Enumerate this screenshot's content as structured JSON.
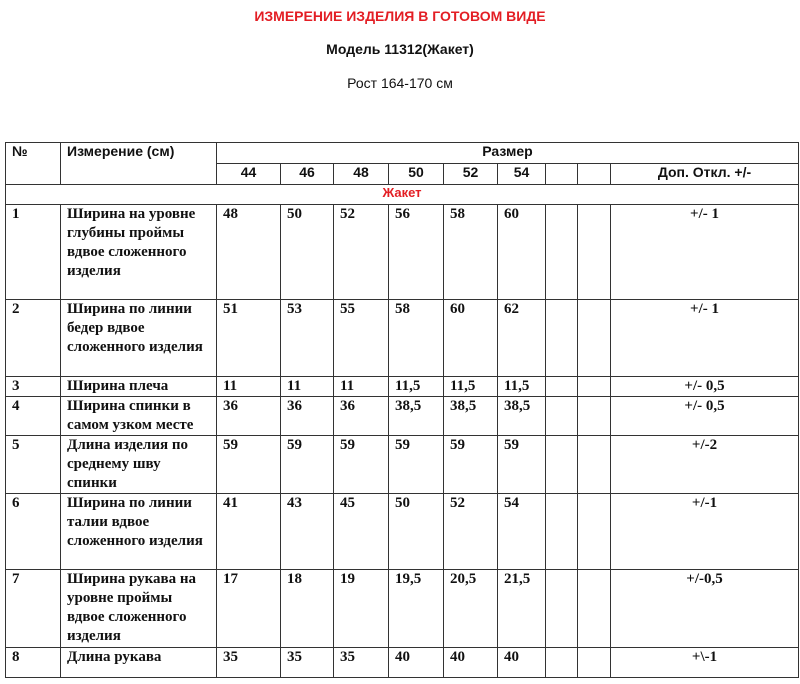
{
  "title": "ИЗМЕРЕНИЕ ИЗДЕЛИЯ В ГОТОВОМ ВИДЕ",
  "model": "Модель 11312(Жакет)",
  "height": "Рост 164-170 см",
  "colors": {
    "accent": "#e31e24"
  },
  "table": {
    "col_no": "№",
    "col_measure": "Измерение (см)",
    "col_size": "Размер",
    "sizes": [
      "44",
      "46",
      "48",
      "50",
      "52",
      "54",
      "",
      ""
    ],
    "col_tol": "Доп.  Откл. +/-",
    "section": "Жакет",
    "rows": [
      {
        "no": "1",
        "name": "Ширина на уровне глубины проймы вдвое сложенного изделия",
        "v": [
          "48",
          "50",
          "52",
          "56",
          "58",
          "60"
        ],
        "tol": "+/- 1"
      },
      {
        "no": "2",
        "name": "Ширина по линии бедер вдвое сложенного изделия",
        "v": [
          "51",
          "53",
          "55",
          "58",
          "60",
          "62"
        ],
        "tol": "+/- 1"
      },
      {
        "no": "3",
        "name": "Ширина плеча",
        "v": [
          "11",
          "11",
          "11",
          "11,5",
          "11,5",
          "11,5"
        ],
        "tol": "+/- 0,5"
      },
      {
        "no": "4",
        "name": "Ширина спинки в самом узком месте",
        "v": [
          "36",
          "36",
          "36",
          "38,5",
          "38,5",
          "38,5"
        ],
        "tol": "+/- 0,5"
      },
      {
        "no": "5",
        "name": "Длина изделия по среднему шву спинки",
        "v": [
          "59",
          "59",
          "59",
          "59",
          "59",
          "59"
        ],
        "tol": "+/-2"
      },
      {
        "no": "6",
        "name": "Ширина по линии талии вдвое сложенного изделия",
        "v": [
          "41",
          "43",
          "45",
          "50",
          "52",
          "54"
        ],
        "tol": "+/-1"
      },
      {
        "no": "7",
        "name": "Ширина рукава на уровне проймы вдвое сложенного изделия",
        "v": [
          "17",
          "18",
          "19",
          "19,5",
          "20,5",
          "21,5"
        ],
        "tol": "+/-0,5"
      },
      {
        "no": "8",
        "name": "Длина рукава",
        "v": [
          "35",
          "35",
          "35",
          "40",
          "40",
          "40"
        ],
        "tol": "+\\-1"
      }
    ]
  }
}
